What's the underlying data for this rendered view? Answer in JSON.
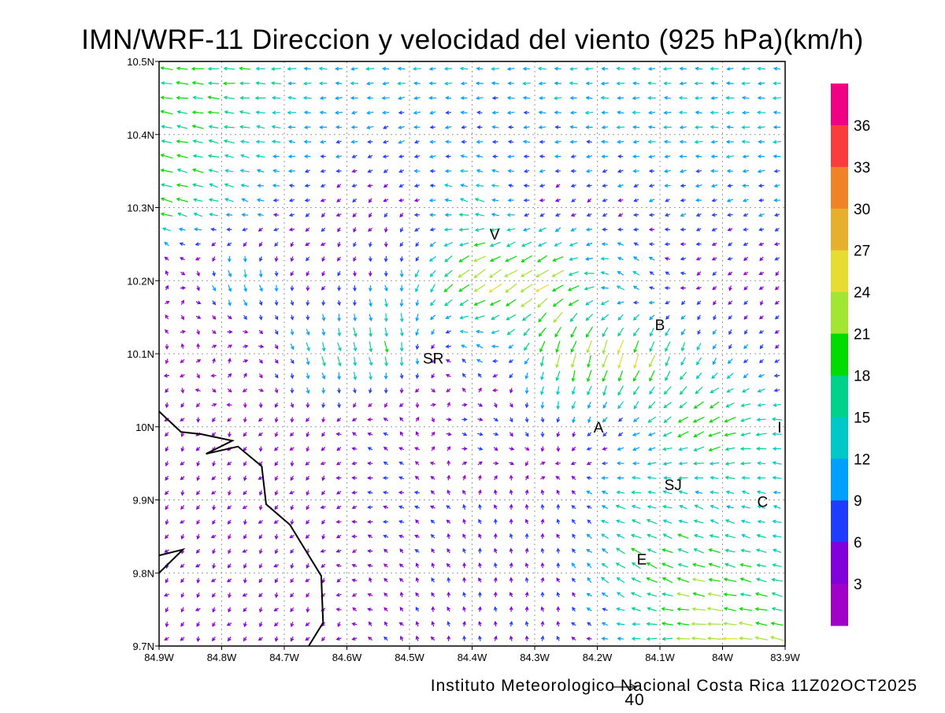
{
  "title": "IMN/WRF-11 Direccion y velocidad del viento (925 hPa)(km/h)",
  "footer": "Instituto Meteorologico Nacional Costa Rica 11Z02OCT2025",
  "reference_vector": {
    "label": "40",
    "value": 40
  },
  "chart_data": {
    "type": "vector-field",
    "title": "IMN/WRF-11 Direccion y velocidad del viento (925 hPa)(km/h)",
    "units": "km/h",
    "xlim": [
      -84.9,
      -83.9
    ],
    "ylim": [
      9.7,
      10.5
    ],
    "x_ticks": [
      {
        "v": -84.9,
        "label": "84.9W"
      },
      {
        "v": -84.8,
        "label": "84.8W"
      },
      {
        "v": -84.7,
        "label": "84.7W"
      },
      {
        "v": -84.6,
        "label": "84.6W"
      },
      {
        "v": -84.5,
        "label": "84.5W"
      },
      {
        "v": -84.4,
        "label": "84.4W"
      },
      {
        "v": -84.3,
        "label": "84.3W"
      },
      {
        "v": -84.2,
        "label": "84.2W"
      },
      {
        "v": -84.1,
        "label": "84.1W"
      },
      {
        "v": -84.0,
        "label": "84W"
      },
      {
        "v": -83.9,
        "label": "83.9W"
      }
    ],
    "y_ticks": [
      {
        "v": 9.7,
        "label": "9.7N"
      },
      {
        "v": 9.8,
        "label": "9.8N"
      },
      {
        "v": 9.9,
        "label": "9.9N"
      },
      {
        "v": 10.0,
        "label": "10N"
      },
      {
        "v": 10.1,
        "label": "10.1N"
      },
      {
        "v": 10.2,
        "label": "10.2N"
      },
      {
        "v": 10.3,
        "label": "10.3N"
      },
      {
        "v": 10.4,
        "label": "10.4N"
      },
      {
        "v": 10.5,
        "label": "10.5N"
      }
    ],
    "grid": true,
    "colorbar": {
      "labels": [
        "3",
        "6",
        "9",
        "12",
        "15",
        "18",
        "21",
        "24",
        "27",
        "30",
        "33",
        "36"
      ],
      "colors": [
        "#a000c8",
        "#8200dc",
        "#1e3cff",
        "#00a0ff",
        "#00c8c8",
        "#00d28c",
        "#00dc00",
        "#a0e632",
        "#e6dc32",
        "#e6af2d",
        "#f08228",
        "#fa3c3c",
        "#f00082"
      ]
    },
    "wind_grid": {
      "lons": [
        -84.9,
        -84.775,
        -84.65,
        -84.525,
        -84.4,
        -84.275,
        -84.15,
        -84.025,
        -83.9
      ],
      "lats": [
        10.5,
        10.4,
        10.3,
        10.2,
        10.1,
        10.0,
        9.9,
        9.8,
        9.7
      ],
      "u": [
        [
          -20,
          -18,
          -12,
          -12,
          -12,
          -12,
          -12,
          -12,
          -12
        ],
        [
          -18,
          -16,
          -10,
          -9,
          -8,
          -10,
          -11,
          -12,
          -12
        ],
        [
          -20,
          -12,
          -4,
          -3,
          -15,
          -4,
          -6,
          -8,
          -8
        ],
        [
          2,
          5,
          -3,
          2,
          -20,
          -22,
          -10,
          -3,
          -3
        ],
        [
          -2,
          3,
          5,
          3,
          -10,
          -5,
          -8,
          -5,
          -5
        ],
        [
          -2,
          -2,
          -2,
          -5,
          10,
          0,
          -8,
          -20,
          -15
        ],
        [
          -2,
          -2,
          -2,
          -8,
          -2,
          0,
          -15,
          -12,
          -12
        ],
        [
          -2,
          -2,
          -2,
          -3,
          -1,
          0,
          -15,
          -20,
          -15
        ],
        [
          -2,
          -2,
          -2,
          -3,
          0,
          0,
          -12,
          -25,
          -20
        ]
      ],
      "v": [
        [
          2,
          0,
          0,
          0,
          0,
          0,
          0,
          0,
          0
        ],
        [
          4,
          3,
          0,
          -3,
          0,
          0,
          0,
          0,
          0
        ],
        [
          5,
          4,
          -3,
          -3,
          5,
          -3,
          -3,
          -2,
          -2
        ],
        [
          6,
          -15,
          -3,
          -10,
          -15,
          -12,
          10,
          -3,
          -3
        ],
        [
          -2,
          5,
          -15,
          -18,
          10,
          -20,
          -25,
          -10,
          -3
        ],
        [
          -3,
          -3,
          -3,
          5,
          -3,
          -8,
          -5,
          -10,
          2
        ],
        [
          -3,
          -3,
          -3,
          1,
          5,
          6,
          3,
          5,
          2
        ],
        [
          -3,
          -3,
          -3,
          4,
          5,
          5,
          10,
          5,
          4
        ],
        [
          -3,
          -3,
          -3,
          4,
          5,
          5,
          -2,
          0,
          5
        ]
      ]
    },
    "coastline": [
      [
        [
          -84.9,
          10.021
        ],
        [
          -84.865,
          9.993
        ],
        [
          -84.833,
          9.99
        ],
        [
          -84.783,
          9.981
        ],
        [
          -84.825,
          9.963
        ],
        [
          -84.774,
          9.973
        ],
        [
          -84.736,
          9.946
        ],
        [
          -84.729,
          9.894
        ],
        [
          -84.691,
          9.866
        ],
        [
          -84.641,
          9.796
        ],
        [
          -84.638,
          9.732
        ],
        [
          -84.661,
          9.7
        ]
      ],
      [
        [
          -84.9,
          9.824
        ],
        [
          -84.862,
          9.832
        ],
        [
          -84.9,
          9.8
        ]
      ]
    ],
    "towns": [
      {
        "label": "V",
        "lon": -84.364,
        "lat": 10.264
      },
      {
        "label": "SR",
        "lon": -84.462,
        "lat": 10.094
      },
      {
        "label": "B",
        "lon": -84.1,
        "lat": 10.14
      },
      {
        "label": "A",
        "lon": -84.198,
        "lat": 10.0
      },
      {
        "label": "I",
        "lon": -83.909,
        "lat": 10.0
      },
      {
        "label": "SJ",
        "lon": -84.079,
        "lat": 9.921
      },
      {
        "label": "C",
        "lon": -83.936,
        "lat": 9.898
      },
      {
        "label": "E",
        "lon": -84.129,
        "lat": 9.819
      }
    ]
  }
}
